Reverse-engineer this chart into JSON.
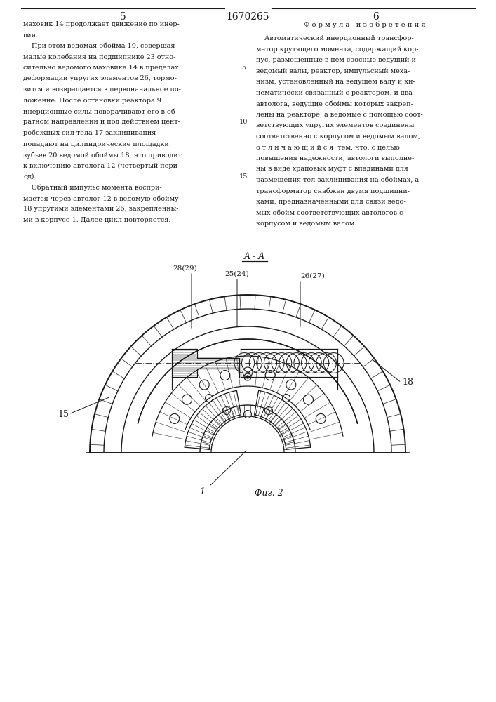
{
  "page_number_left": "5",
  "page_number_center": "1670265",
  "page_number_right": "6",
  "left_column_text": [
    "маховик 14 продолжает движение по инер-",
    "ции.",
    "    При этом ведомая обойма 19, совершая",
    "малые колебания на подшипнике 23 отно-",
    "сительно ведомого маховика 14 в пределах",
    "деформации упругих элементов 26, тормо-",
    "зится и возвращается в первоначальное по-",
    "ложение. После остановки реактора 9",
    "инерционные силы поворачивают его в об-",
    "ратном направлении и под действием цент-",
    "робежных сил тела 17 заклинивания",
    "попадают на цилиндрические площадки",
    "зубьев 20 ведомой обоймы 18, что приводит",
    "к включению автолога 12 (четвертый пери-",
    "од).",
    "    Обратный импульс момента воспри-",
    "мается через автолог 12 в ведомую обойму",
    "18 упругими элементами 26, закрепленны-",
    "ми в корпусе 1. Далее цикл повторяется."
  ],
  "right_column_header": "Ф о р м у л а   и з о б р е т е н и я",
  "right_column_text": [
    "    Автоматический инерционный трансфор-",
    "матор крутящего момента, содержащий кор-",
    "пус, размещенные в нем соосные ведущий и",
    "ведомый валы, реактор, импульсный меха-",
    "низм, установленный на ведущем валу и ки-",
    "нематически связанный с реактором, и два",
    "автолога, ведущие обоймы которых закреп-",
    "лены на реакторе, а ведомые с помощью соот-",
    "ветствующих упругих элементов соединены",
    "соответственно с корпусом и ведомым валом,",
    "о т л и ч а ю щ и й с я  тем, что, с целью",
    "повышения надежности, автологи выполне-",
    "ны в виде храповых муфт с впадинами для",
    "размещения тел заклинивания на обоймах, а",
    "трансформатор снабжен двумя подшипни-",
    "ками, предназначенными для связи ведо-",
    "мых обойм соответствующих автологов с",
    "корпусом и ведомым валом."
  ],
  "bg_color": "#ffffff",
  "line_color": "#1a1a1a",
  "font_color": "#1a1a1a"
}
